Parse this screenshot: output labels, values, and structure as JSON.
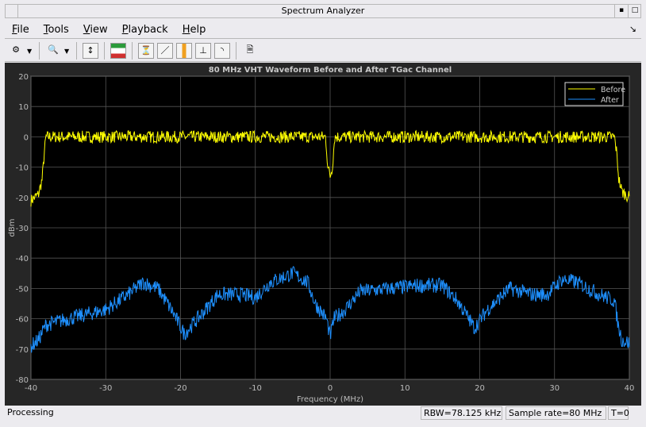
{
  "window": {
    "title": "Spectrum Analyzer"
  },
  "menu": [
    {
      "label": "File",
      "mn": "F",
      "rest": "ile"
    },
    {
      "label": "Tools",
      "mn": "T",
      "rest": "ools"
    },
    {
      "label": "View",
      "mn": "V",
      "rest": "iew"
    },
    {
      "label": "Playback",
      "mn": "P",
      "rest": "layback"
    },
    {
      "label": "Help",
      "mn": "H",
      "rest": "elp"
    }
  ],
  "toolbar": [
    "settings-icon",
    "zoom-in-icon",
    "autoscale-icon",
    "spectrum-icon",
    "peak-finder-icon",
    "measurement-icon",
    "channel-measurement-icon",
    "distortion-icon",
    "ccdf-icon",
    "export-icon"
  ],
  "status": {
    "state": "Processing",
    "rbw": "RBW=78.125 kHz",
    "sample_rate": "Sample rate=80 MHz",
    "time": "T=0"
  },
  "chart_data": {
    "type": "line",
    "title": "80 MHz VHT Waveform Before and After TGac Channel",
    "xlabel": "Frequency (MHz)",
    "ylabel": "dBm",
    "xlim": [
      -40,
      40
    ],
    "ylim": [
      -80,
      20
    ],
    "xticks": [
      -40,
      -30,
      -20,
      -10,
      0,
      10,
      20,
      30,
      40
    ],
    "yticks": [
      20,
      10,
      0,
      -10,
      -20,
      -30,
      -40,
      -50,
      -60,
      -70,
      -80
    ],
    "grid": true,
    "legend": "top-right",
    "background": "#000000",
    "series": [
      {
        "name": "Before",
        "color": "#ffff00",
        "envelope": [
          [
            -40,
            -21
          ],
          [
            -39,
            -19
          ],
          [
            -38.5,
            -14
          ],
          [
            -38.2,
            -5
          ],
          [
            -38,
            0
          ],
          [
            -0.6,
            0
          ],
          [
            -0.3,
            -10
          ],
          [
            0,
            -13
          ],
          [
            0.3,
            -10
          ],
          [
            0.6,
            0
          ],
          [
            38,
            0
          ],
          [
            38.3,
            -5
          ],
          [
            38.6,
            -14
          ],
          [
            39,
            -18
          ],
          [
            40,
            -20
          ]
        ]
      },
      {
        "name": "After",
        "color": "#1e90ff",
        "envelope": [
          [
            -40,
            -69
          ],
          [
            -39,
            -67
          ],
          [
            -38,
            -62
          ],
          [
            -35,
            -60
          ],
          [
            -30,
            -57
          ],
          [
            -27,
            -52
          ],
          [
            -25,
            -48
          ],
          [
            -23,
            -50
          ],
          [
            -21,
            -58
          ],
          [
            -19.5,
            -65
          ],
          [
            -17,
            -58
          ],
          [
            -15,
            -52
          ],
          [
            -12,
            -52
          ],
          [
            -10,
            -53
          ],
          [
            -8,
            -48
          ],
          [
            -5,
            -45
          ],
          [
            -3,
            -48
          ],
          [
            -2,
            -55
          ],
          [
            -0.5,
            -60
          ],
          [
            0,
            -66
          ],
          [
            0.5,
            -60
          ],
          [
            2,
            -57
          ],
          [
            4,
            -51
          ],
          [
            8,
            -50
          ],
          [
            12,
            -49
          ],
          [
            15,
            -49
          ],
          [
            17,
            -54
          ],
          [
            19.3,
            -63
          ],
          [
            21,
            -57
          ],
          [
            24,
            -50
          ],
          [
            27,
            -52
          ],
          [
            29,
            -52
          ],
          [
            31,
            -47
          ],
          [
            33,
            -48
          ],
          [
            36,
            -52
          ],
          [
            38,
            -54
          ],
          [
            38.5,
            -62
          ],
          [
            39,
            -67
          ],
          [
            40,
            -68
          ]
        ]
      }
    ]
  }
}
